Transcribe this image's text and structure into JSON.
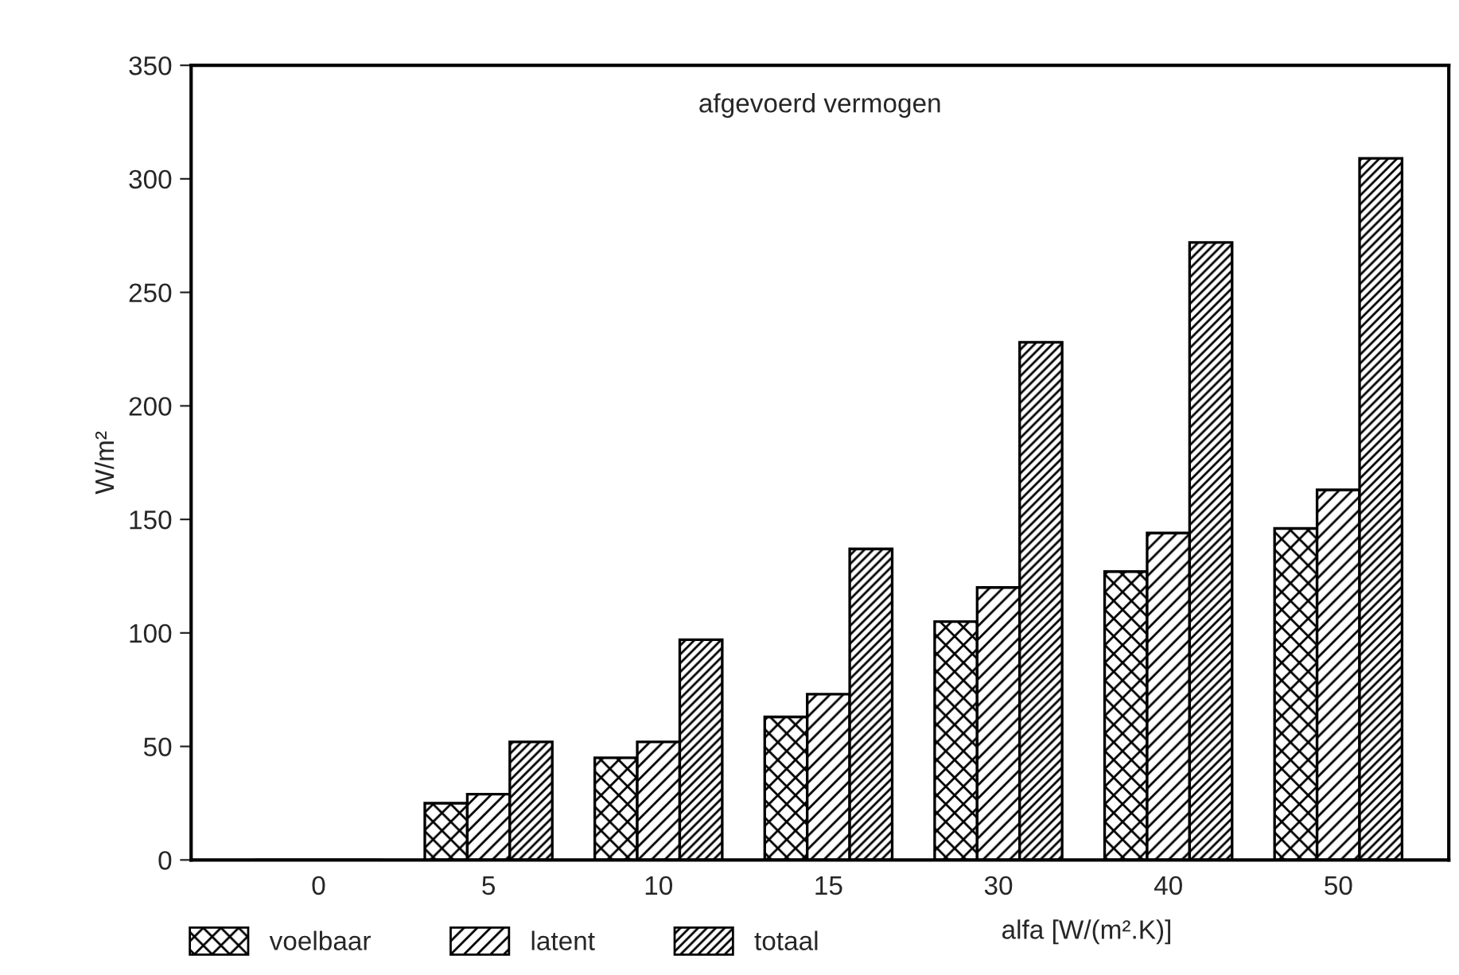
{
  "chart_data": {
    "type": "bar",
    "title": "afgevoerd vermogen",
    "ylabel": "W/m²",
    "xlabel": "alfa [W/(m².K)]",
    "categories": [
      "0",
      "5",
      "10",
      "15",
      "30",
      "40",
      "50"
    ],
    "series": [
      {
        "name": "voelbaar",
        "color": "#000000",
        "values": [
          0,
          25,
          45,
          63,
          105,
          127,
          146
        ]
      },
      {
        "name": "latent",
        "color": "#000000",
        "values": [
          0,
          29,
          52,
          73,
          120,
          144,
          163
        ]
      },
      {
        "name": "totaal",
        "color": "#000000",
        "values": [
          0,
          52,
          97,
          137,
          228,
          272,
          309
        ]
      }
    ],
    "ylim": [
      0,
      350
    ],
    "yticks": [
      0,
      50,
      100,
      150,
      200,
      250,
      300,
      350
    ],
    "grid": false,
    "legend": "bottom"
  }
}
